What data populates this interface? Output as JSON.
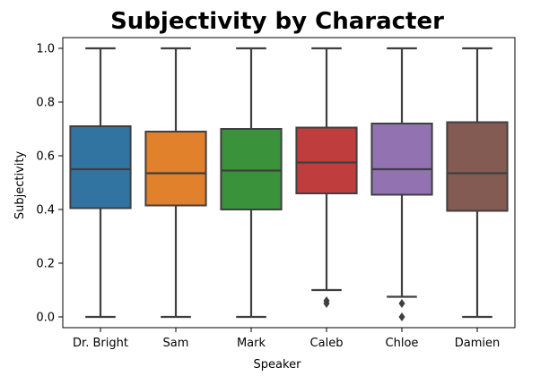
{
  "chart_data": {
    "type": "box",
    "title": "Subjectivity by Character",
    "xlabel": "Speaker",
    "ylabel": "Subjectivity",
    "ylim": [
      -0.04,
      1.04
    ],
    "yticks": [
      0.0,
      0.2,
      0.4,
      0.6,
      0.8,
      1.0
    ],
    "ytick_labels": [
      "0.0",
      "0.2",
      "0.4",
      "0.6",
      "0.8",
      "1.0"
    ],
    "grid": false,
    "categories": [
      "Dr. Bright",
      "Sam",
      "Mark",
      "Caleb",
      "Chloe",
      "Damien"
    ],
    "boxes": [
      {
        "whisker_low": 0.0,
        "q1": 0.405,
        "median": 0.55,
        "q3": 0.71,
        "whisker_high": 1.0,
        "outliers": [],
        "color": "#3274a1"
      },
      {
        "whisker_low": 0.0,
        "q1": 0.415,
        "median": 0.535,
        "q3": 0.69,
        "whisker_high": 1.0,
        "outliers": [],
        "color": "#e1812c"
      },
      {
        "whisker_low": 0.0,
        "q1": 0.4,
        "median": 0.545,
        "q3": 0.7,
        "whisker_high": 1.0,
        "outliers": [],
        "color": "#3a923a"
      },
      {
        "whisker_low": 0.1,
        "q1": 0.46,
        "median": 0.575,
        "q3": 0.705,
        "whisker_high": 1.0,
        "outliers": [
          0.05,
          0.06
        ],
        "color": "#c03d3e"
      },
      {
        "whisker_low": 0.075,
        "q1": 0.455,
        "median": 0.55,
        "q3": 0.72,
        "whisker_high": 1.0,
        "outliers": [
          0.0,
          0.05
        ],
        "color": "#9372b2"
      },
      {
        "whisker_low": 0.0,
        "q1": 0.395,
        "median": 0.535,
        "q3": 0.725,
        "whisker_high": 1.0,
        "outliers": [],
        "color": "#845b53"
      }
    ]
  }
}
